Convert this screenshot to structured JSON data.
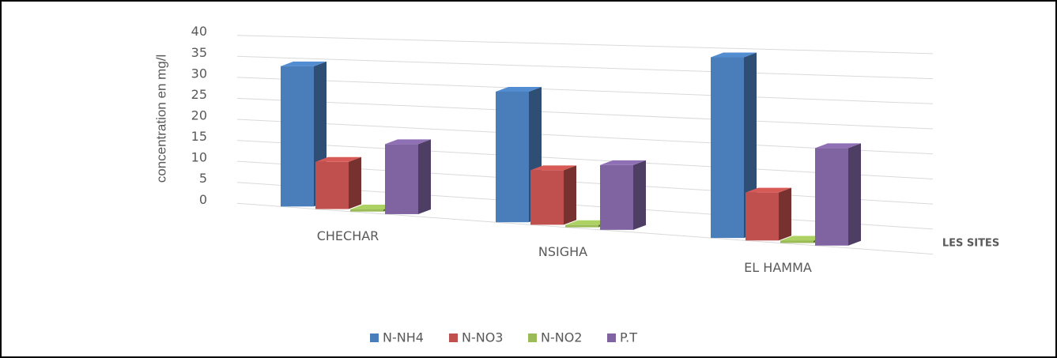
{
  "chart_data": {
    "type": "bar3d",
    "y_label": "concentration en mg/l",
    "x_label": "LES SITES",
    "categories": [
      "CHECHAR",
      "NSIGHA",
      "EL HAMMA"
    ],
    "series": [
      {
        "name": "N-NH4",
        "color": "#4a7ebb",
        "values": [
          33,
          29,
          38
        ]
      },
      {
        "name": "N-NO3",
        "color": "#c0504d",
        "values": [
          11,
          12,
          10
        ]
      },
      {
        "name": "N-NO2",
        "color": "#9bbb59",
        "values": [
          0.5,
          0.5,
          0.5
        ]
      },
      {
        "name": "P.T",
        "color": "#8064a2",
        "values": [
          16,
          14,
          20
        ]
      }
    ],
    "ylim": [
      0,
      40
    ],
    "yticks": [
      0,
      5,
      10,
      15,
      20,
      25,
      30,
      35,
      40
    ],
    "grid": true,
    "legend": "bottom"
  }
}
